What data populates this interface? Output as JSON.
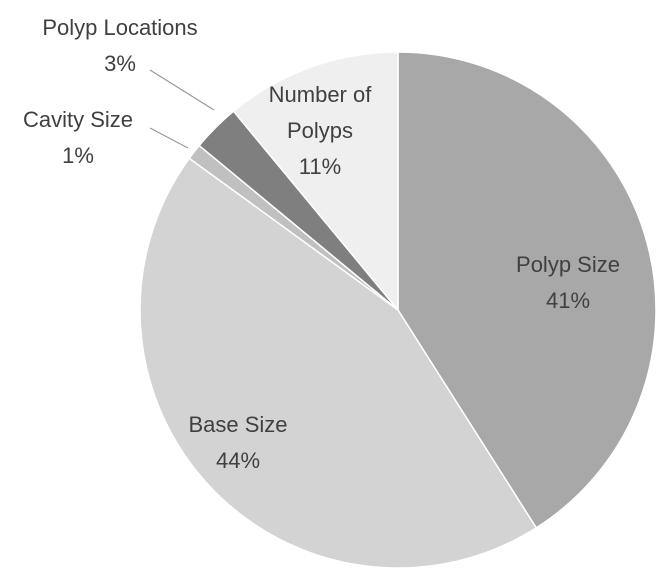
{
  "chart_data": {
    "type": "pie",
    "categories": [
      "Polyp Size",
      "Base Size",
      "Cavity Size",
      "Polyp Locations",
      "Number of Polyps"
    ],
    "values": [
      41,
      44,
      1,
      3,
      11
    ],
    "value_labels": [
      "41%",
      "44%",
      "1%",
      "3%",
      "11%"
    ],
    "colors": [
      "#a8a8a8",
      "#d3d3d3",
      "#c0c0c0",
      "#7f7f7f",
      "#efefef"
    ]
  }
}
